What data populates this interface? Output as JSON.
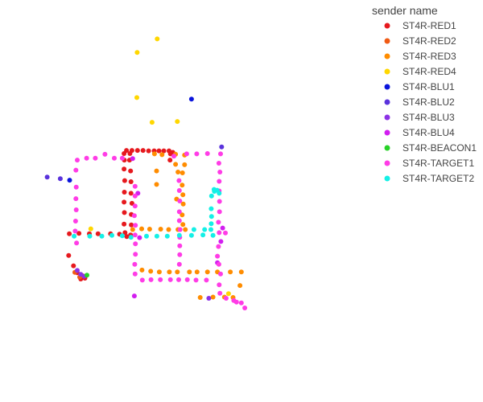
{
  "chart_data": {
    "type": "scatter",
    "title": "",
    "xlabel": "",
    "ylabel": "",
    "xlim": [
      0,
      100
    ],
    "ylim": [
      0,
      100
    ],
    "grid": false,
    "axes_visible": false,
    "legend": {
      "title": "sender name",
      "placement": "top-right"
    },
    "series": [
      {
        "name": "ST4R-RED1",
        "color": "#e6191e",
        "points": [
          [
            34.2,
            63.1
          ],
          [
            35.8,
            63.1
          ],
          [
            37.4,
            63.1
          ],
          [
            39.0,
            63.1
          ],
          [
            40.6,
            63.0
          ],
          [
            42.2,
            63.0
          ],
          [
            43.6,
            63.0
          ],
          [
            45.0,
            63.0
          ],
          [
            46.5,
            63.0
          ],
          [
            47.6,
            62.6
          ],
          [
            33.5,
            62.3
          ],
          [
            35.2,
            62.3
          ],
          [
            46.9,
            62.2
          ],
          [
            33.6,
            60.6
          ],
          [
            35.1,
            60.6
          ],
          [
            46.8,
            60.6
          ],
          [
            33.5,
            58.3
          ],
          [
            35.4,
            57.8
          ],
          [
            33.7,
            55.3
          ],
          [
            35.5,
            55.0
          ],
          [
            33.6,
            52.3
          ],
          [
            35.5,
            52.0
          ],
          [
            33.5,
            49.7
          ],
          [
            35.8,
            49.4
          ],
          [
            33.6,
            47.0
          ],
          [
            35.6,
            46.5
          ],
          [
            33.5,
            44.0
          ],
          [
            35.6,
            43.8
          ],
          [
            33.8,
            41.8
          ],
          [
            35.4,
            41.2
          ],
          [
            17.7,
            41.5
          ],
          [
            20.5,
            41.6
          ],
          [
            23.5,
            41.5
          ],
          [
            26.0,
            41.5
          ],
          [
            29.6,
            41.5
          ],
          [
            32.2,
            41.4
          ],
          [
            34.3,
            40.8
          ],
          [
            17.5,
            35.9
          ],
          [
            18.9,
            33.2
          ],
          [
            20.0,
            31.4
          ],
          [
            21.5,
            30.3
          ],
          [
            21.0,
            29.8
          ],
          [
            22.2,
            30.0
          ]
        ]
      },
      {
        "name": "ST4R-RED2",
        "color": "#f05a14",
        "points": [
          [
            19.3,
            31.5
          ],
          [
            20.7,
            30.3
          ],
          [
            21.4,
            30.7
          ]
        ]
      },
      {
        "name": "ST4R-RED3",
        "color": "#ff8c00",
        "points": [
          [
            42.3,
            62.2
          ],
          [
            44.5,
            62.0
          ],
          [
            48.4,
            62.1
          ],
          [
            51.0,
            61.9
          ],
          [
            48.4,
            59.5
          ],
          [
            51.0,
            59.4
          ],
          [
            50.4,
            57.3
          ],
          [
            42.9,
            57.8
          ],
          [
            49.1,
            57.5
          ],
          [
            50.3,
            54.1
          ],
          [
            42.9,
            54.3
          ],
          [
            50.5,
            51.6
          ],
          [
            48.7,
            50.5
          ],
          [
            50.6,
            49.2
          ],
          [
            50.3,
            46.4
          ],
          [
            50.5,
            43.9
          ],
          [
            36.0,
            42.6
          ],
          [
            38.6,
            42.8
          ],
          [
            40.9,
            42.7
          ],
          [
            44.1,
            42.7
          ],
          [
            46.4,
            42.6
          ],
          [
            49.1,
            42.6
          ],
          [
            51.2,
            42.6
          ],
          [
            38.7,
            32.1
          ],
          [
            41.2,
            31.8
          ],
          [
            43.7,
            31.6
          ],
          [
            46.6,
            31.6
          ],
          [
            48.9,
            31.6
          ],
          [
            52.4,
            31.6
          ],
          [
            54.6,
            31.6
          ],
          [
            57.6,
            31.6
          ],
          [
            60.5,
            31.6
          ],
          [
            64.2,
            31.6
          ],
          [
            67.4,
            31.6
          ],
          [
            67.0,
            28.1
          ],
          [
            55.5,
            25.0
          ],
          [
            59.2,
            25.1
          ],
          [
            62.5,
            25.1
          ],
          [
            65.0,
            25.0
          ]
        ]
      },
      {
        "name": "ST4R-RED4",
        "color": "#ffd700",
        "points": [
          [
            43.1,
            92.0
          ],
          [
            37.3,
            88.5
          ],
          [
            37.2,
            76.8
          ],
          [
            41.6,
            70.4
          ],
          [
            48.9,
            70.6
          ],
          [
            23.9,
            42.8
          ],
          [
            63.7,
            26.0
          ]
        ]
      },
      {
        "name": "ST4R-BLU1",
        "color": "#0a14dc",
        "points": [
          [
            53.0,
            76.4
          ],
          [
            17.8,
            55.4
          ]
        ]
      },
      {
        "name": "ST4R-BLU2",
        "color": "#5a32dc",
        "points": [
          [
            11.3,
            56.2
          ],
          [
            15.1,
            55.8
          ],
          [
            61.7,
            64.0
          ]
        ]
      },
      {
        "name": "ST4R-BLU3",
        "color": "#8c32e6",
        "points": [
          [
            20.0,
            32.0
          ],
          [
            21.0,
            31.0
          ],
          [
            22.0,
            30.5
          ],
          [
            58.0,
            24.8
          ]
        ]
      },
      {
        "name": "ST4R-BLU4",
        "color": "#d21ef0",
        "points": [
          [
            36.0,
            61.0
          ],
          [
            37.5,
            52.0
          ],
          [
            38.0,
            40.5
          ],
          [
            36.5,
            25.4
          ],
          [
            62.0,
            43.0
          ],
          [
            61.5,
            39.5
          ],
          [
            60.5,
            34.0
          ]
        ]
      },
      {
        "name": "ST4R-BEACON1",
        "color": "#28d228",
        "points": [
          [
            22.8,
            30.8
          ]
        ]
      },
      {
        "name": "ST4R-TARGET1",
        "color": "#ff3ce6",
        "points": [
          [
            20.0,
            60.6
          ],
          [
            22.7,
            61.1
          ],
          [
            25.2,
            61.1
          ],
          [
            28.0,
            62.1
          ],
          [
            30.7,
            61.1
          ],
          [
            33.0,
            61.1
          ],
          [
            19.6,
            58.0
          ],
          [
            19.7,
            53.6
          ],
          [
            19.6,
            50.6
          ],
          [
            19.7,
            47.7
          ],
          [
            19.5,
            44.8
          ],
          [
            19.4,
            42.2
          ],
          [
            19.8,
            39.1
          ],
          [
            51.6,
            62.2
          ],
          [
            54.5,
            62.2
          ],
          [
            57.6,
            62.3
          ],
          [
            61.4,
            62.2
          ],
          [
            60.9,
            59.8
          ],
          [
            61.2,
            57.5
          ],
          [
            61.0,
            55.1
          ],
          [
            61.0,
            52.6
          ],
          [
            61.1,
            49.9
          ],
          [
            61.1,
            47.2
          ],
          [
            60.8,
            44.5
          ],
          [
            61.0,
            41.8
          ],
          [
            62.8,
            41.7
          ],
          [
            60.8,
            38.2
          ],
          [
            60.5,
            35.7
          ],
          [
            60.9,
            33.6
          ],
          [
            61.4,
            31.1
          ],
          [
            61.0,
            28.3
          ],
          [
            61.2,
            26.1
          ],
          [
            63.0,
            24.8
          ],
          [
            65.2,
            24.2
          ],
          [
            67.4,
            23.6
          ],
          [
            68.4,
            22.3
          ],
          [
            66.0,
            23.8
          ],
          [
            49.4,
            55.3
          ],
          [
            49.5,
            52.7
          ],
          [
            49.6,
            50.0
          ],
          [
            49.5,
            47.2
          ],
          [
            49.5,
            44.9
          ],
          [
            49.7,
            42.6
          ],
          [
            49.6,
            40.6
          ],
          [
            49.6,
            38.4
          ],
          [
            49.6,
            36.1
          ],
          [
            49.5,
            33.6
          ],
          [
            36.7,
            53.8
          ],
          [
            36.7,
            51.3
          ],
          [
            36.7,
            48.7
          ],
          [
            36.5,
            46.2
          ],
          [
            36.8,
            43.7
          ],
          [
            36.7,
            41.2
          ],
          [
            36.8,
            38.9
          ],
          [
            36.8,
            36.2
          ],
          [
            36.6,
            33.6
          ],
          [
            36.7,
            31.1
          ],
          [
            38.8,
            29.5
          ],
          [
            41.3,
            29.6
          ],
          [
            44.0,
            29.6
          ],
          [
            46.9,
            29.6
          ],
          [
            49.3,
            29.6
          ],
          [
            51.8,
            29.6
          ],
          [
            54.3,
            29.5
          ],
          [
            57.3,
            29.5
          ],
          [
            47.9,
            61.6
          ]
        ]
      },
      {
        "name": "ST4R-TARGET2",
        "color": "#14f0e6",
        "points": [
          [
            19.1,
            40.9
          ],
          [
            23.6,
            40.9
          ],
          [
            27.1,
            40.9
          ],
          [
            30.0,
            41.1
          ],
          [
            33.0,
            41.0
          ],
          [
            35.5,
            40.6
          ],
          [
            40.0,
            40.9
          ],
          [
            43.0,
            40.9
          ],
          [
            46.0,
            40.9
          ],
          [
            49.5,
            41.1
          ],
          [
            53.0,
            41.1
          ],
          [
            56.3,
            41.2
          ],
          [
            59.2,
            41.1
          ],
          [
            53.7,
            42.6
          ],
          [
            56.8,
            42.6
          ],
          [
            58.6,
            42.6
          ],
          [
            58.7,
            44.1
          ],
          [
            58.8,
            46.0
          ],
          [
            58.7,
            48.0
          ],
          [
            58.8,
            51.3
          ],
          [
            59.6,
            52.5
          ],
          [
            60.4,
            52.8
          ],
          [
            61.0,
            52.0
          ],
          [
            59.5,
            53.0
          ]
        ]
      }
    ]
  }
}
